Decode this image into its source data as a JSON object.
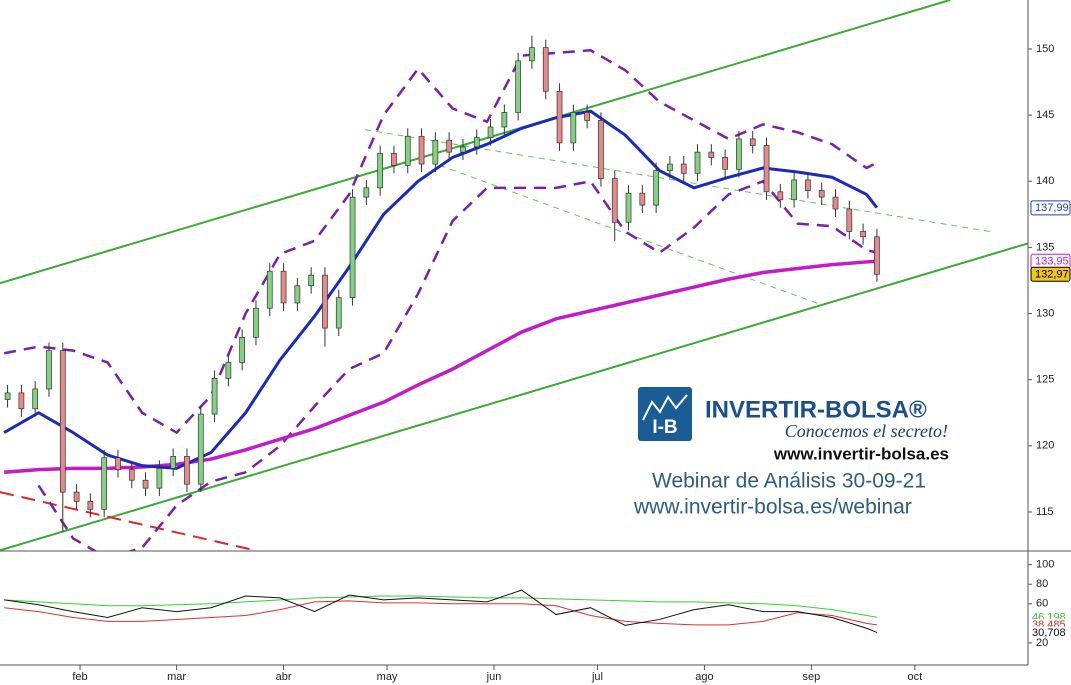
{
  "chart_data": [
    {
      "type": "candlestick",
      "x": [
        11,
        15,
        19,
        23,
        27,
        31,
        35,
        39,
        43,
        47,
        51,
        55,
        59,
        63,
        67,
        71,
        75,
        79,
        83,
        87,
        91,
        95,
        99,
        103,
        107,
        111,
        115,
        119,
        123,
        127,
        131,
        135,
        139,
        143,
        147,
        151,
        155,
        159,
        163,
        167,
        171,
        175,
        179,
        183,
        187,
        191,
        195,
        199,
        203,
        207,
        211,
        215,
        219,
        223,
        227,
        231,
        235,
        239,
        243,
        247,
        251,
        255,
        259,
        263
      ],
      "open": [
        123.5,
        124,
        122.8,
        124.3,
        127.2,
        116.5,
        115.8,
        115.2,
        119.1,
        118.2,
        117.4,
        116.8,
        118.3,
        119.2,
        117.1,
        122.4,
        125.1,
        126.3,
        128.2,
        130.4,
        133.2,
        130.8,
        132.1,
        132.9,
        128.9,
        131.2,
        138.8,
        139.5,
        142.1,
        141.2,
        143.4,
        141.3,
        143.1,
        142.2,
        142.6,
        143.3,
        144.1,
        145.2,
        149.1,
        150.1,
        146.8,
        142.9,
        145.2,
        144.6,
        140.2,
        136.9,
        139.1,
        138.2,
        140.8,
        141.3,
        140.6,
        142.2,
        141.8,
        140.9,
        143.2,
        142.7,
        139.2,
        138.6,
        140.1,
        139.3,
        138.8,
        137.9,
        136.2,
        135.8
      ],
      "high": [
        124.6,
        124.6,
        124.9,
        127.8,
        127.8,
        117.1,
        116.4,
        119.7,
        119.7,
        118.8,
        118,
        118.9,
        119.8,
        119.8,
        123,
        125.7,
        126.9,
        128.8,
        131,
        133.8,
        133.8,
        132.7,
        133.5,
        133.5,
        131.8,
        139.4,
        140.1,
        142.7,
        142.7,
        144,
        144,
        143.7,
        143.7,
        143.2,
        143.9,
        144.7,
        145.8,
        149.7,
        151,
        150.7,
        147.4,
        145.8,
        145.8,
        145.2,
        140.8,
        139.7,
        139.7,
        141.4,
        141.9,
        141.9,
        142.8,
        142.8,
        142.4,
        143.8,
        143.8,
        143.3,
        139.8,
        140.7,
        140.7,
        139.9,
        139.4,
        138.5,
        136.8,
        136.4
      ],
      "low": [
        122.9,
        122.2,
        122.2,
        123.7,
        113.5,
        115.2,
        114.6,
        114.6,
        117.6,
        116.8,
        116.2,
        116.2,
        117.7,
        116.5,
        116.5,
        121.8,
        124.5,
        125.7,
        127.6,
        129.8,
        130.2,
        130.2,
        131.5,
        127.5,
        128.3,
        130.6,
        138.2,
        138.9,
        140.6,
        140.6,
        140.7,
        140.7,
        141.6,
        141.6,
        142,
        142.7,
        143.5,
        144.6,
        148.5,
        146.2,
        142.3,
        142.3,
        144,
        139.6,
        135.5,
        136.3,
        137.6,
        137.6,
        140.2,
        140,
        140,
        141.2,
        140.3,
        140.3,
        142.1,
        138.6,
        138,
        138,
        138.7,
        138.2,
        137.3,
        135.6,
        135.2,
        132.4
      ],
      "close": [
        124,
        122.8,
        124.3,
        127.2,
        116.5,
        115.8,
        115.2,
        119.1,
        118.2,
        117.4,
        116.8,
        118.3,
        119.2,
        117.1,
        122.4,
        125.1,
        126.3,
        128.2,
        130.4,
        133.2,
        130.8,
        132.1,
        132.9,
        128.9,
        131.2,
        138.8,
        139.5,
        142.1,
        141.2,
        143.4,
        141.3,
        143.1,
        142.2,
        142.6,
        143.3,
        144.1,
        145.2,
        149.1,
        150.1,
        146.8,
        142.9,
        145.2,
        144.6,
        140.2,
        136.9,
        139.1,
        138.2,
        140.8,
        141.3,
        140.6,
        142.2,
        141.8,
        140.9,
        143.2,
        142.7,
        139.2,
        138.6,
        140.1,
        139.3,
        138.8,
        137.9,
        136.2,
        135.8,
        132.97
      ],
      "up_color": "#82d282",
      "down_color": "#e48a8a",
      "xlim": [
        8.8,
        306.8
      ],
      "ylim": [
        112.05,
        153.7
      ],
      "yticks": [
        115,
        120,
        125,
        130,
        135,
        140,
        145,
        150
      ],
      "xticks": [
        {
          "value": 32,
          "label": "feb"
        },
        {
          "value": 60,
          "label": "mar"
        },
        {
          "value": 91,
          "label": "abr"
        },
        {
          "value": 121,
          "label": "may"
        },
        {
          "value": 152,
          "label": "jun"
        },
        {
          "value": 182,
          "label": "jul"
        },
        {
          "value": 213,
          "label": "ago"
        },
        {
          "value": 244,
          "label": "sep"
        },
        {
          "value": 274,
          "label": "oct"
        }
      ],
      "overlay_x": [
        10,
        20,
        30,
        40,
        50,
        60,
        70,
        80,
        90,
        100,
        110,
        120,
        130,
        140,
        150,
        160,
        170,
        180,
        190,
        200,
        210,
        220,
        230,
        240,
        250,
        260,
        263
      ],
      "overlays": [
        {
          "color": "#7a1fa8",
          "width": 2.5,
          "dash": "12 8",
          "values": [
            127,
            127.5,
            127.2,
            126.3,
            122.5,
            121,
            123.8,
            130,
            134.5,
            135.5,
            139,
            145,
            148.5,
            145.5,
            144.5,
            149.5,
            149.7,
            149.9,
            148.4,
            146,
            144.6,
            143.2,
            144.3,
            143.7,
            142.8,
            141,
            141.4
          ]
        },
        {
          "color": "#7a1fa8",
          "width": 2.5,
          "dash": "12 8",
          "values": [
            null,
            117,
            113,
            111.5,
            112.3,
            115.5,
            117.3,
            118,
            120,
            123,
            125.8,
            127,
            131.5,
            137,
            139.5,
            139.5,
            139.5,
            140,
            136.2,
            134.6,
            136.5,
            139,
            140,
            136.8,
            136.6,
            134.8,
            134.6
          ]
        },
        {
          "color": "#c21bc7",
          "width": 3.5,
          "dash": "none",
          "values": [
            118,
            118.2,
            118.3,
            118.3,
            118.4,
            118.6,
            119,
            119.7,
            120.5,
            121.3,
            122.3,
            123.3,
            124.6,
            125.8,
            127.2,
            128.6,
            129.6,
            130.2,
            130.8,
            131.4,
            132,
            132.6,
            133.1,
            133.4,
            133.7,
            133.9,
            133.95
          ]
        },
        {
          "color": "#1b2ab8",
          "width": 3,
          "dash": "none",
          "values": [
            121,
            122.5,
            121,
            119.3,
            118.5,
            118.3,
            119.5,
            122.5,
            126.5,
            129.8,
            133.5,
            137.5,
            140,
            141.8,
            142.8,
            144,
            144.8,
            145.3,
            143.5,
            140.8,
            139.5,
            140.3,
            141,
            140.7,
            140.3,
            139,
            138
          ]
        }
      ],
      "trendlines": [
        {
          "color": "#3aaa35",
          "width": 2,
          "dash": "none",
          "x": [
            8.8,
            284.2
          ],
          "y": [
            132.3,
            153.7
          ]
        },
        {
          "color": "#3aaa35",
          "width": 2,
          "dash": "none",
          "x": [
            8.8,
            306.8
          ],
          "y": [
            112.1,
            135.3
          ]
        },
        {
          "color": "#5fc85a",
          "width": 1,
          "dash": "6 5",
          "x": [
            114.6,
            295.8
          ],
          "y": [
            143.9,
            136.2
          ]
        },
        {
          "color": "#5fc85a",
          "width": 1,
          "dash": "6 5",
          "x": [
            136.3,
            246.5
          ],
          "y": [
            141.2,
            130.7
          ]
        },
        {
          "color": "#e0242a",
          "width": 2,
          "dash": "14 8",
          "x": [
            8.8,
            82.7
          ],
          "y": [
            116.5,
            112.1
          ]
        }
      ],
      "price_tags": [
        {
          "value": 137.99,
          "label": "137,99",
          "color": "#1f3fbf",
          "fill": "#ffffff"
        },
        {
          "value": 133.95,
          "label": "133,95",
          "color": "#c21bc7",
          "fill": "#ffffff"
        },
        {
          "value": 132.97,
          "label": "132,97",
          "color": "#000000",
          "fill": "#f0c419"
        }
      ]
    },
    {
      "type": "line",
      "x": [
        10,
        20,
        30,
        40,
        50,
        60,
        70,
        80,
        90,
        100,
        110,
        120,
        130,
        140,
        150,
        160,
        170,
        180,
        190,
        200,
        210,
        220,
        230,
        240,
        250,
        260,
        263
      ],
      "xlim": [
        8.8,
        306.8
      ],
      "ylim": [
        -2.6,
        114
      ],
      "yticks": [
        20,
        60,
        80,
        100
      ],
      "series": [
        {
          "color": "#38d038",
          "values": [
            64,
            62,
            60,
            58,
            58,
            59,
            60,
            62,
            64,
            66,
            67,
            68,
            68,
            67,
            66,
            66,
            65,
            64,
            63,
            62,
            62,
            61,
            60,
            58,
            54,
            48,
            46.198
          ]
        },
        {
          "color": "#e03030",
          "values": [
            56,
            52,
            46,
            42,
            42,
            44,
            46,
            48,
            54,
            62,
            63,
            61,
            61,
            60,
            60,
            60,
            58,
            48,
            42,
            40,
            38.5,
            38.5,
            42,
            51,
            48,
            40,
            38.485
          ]
        },
        {
          "color": "#111111",
          "values": [
            64,
            59,
            52,
            46,
            56,
            52,
            56,
            68,
            66,
            52,
            69,
            64,
            66,
            64,
            62,
            74,
            49,
            56,
            38,
            44,
            54,
            59,
            52,
            52,
            46,
            35,
            30.708
          ]
        }
      ],
      "tags": [
        {
          "value": 46.198,
          "label": "46,198",
          "color": "#2fbf2f"
        },
        {
          "value": 38.485,
          "label": "38,485",
          "color": "#e03030"
        },
        {
          "value": 30.708,
          "label": "30,708",
          "color": "#111111"
        }
      ]
    }
  ],
  "branding": {
    "icon_text": "I-B",
    "brand": "INVERTIR-BOLSA®",
    "tagline": "Conocemos el secreto!",
    "site": "www.invertir-bolsa.es",
    "event": "Webinar de Análisis 30-09-21",
    "event_url": "www.invertir-bolsa.es/webinar"
  }
}
